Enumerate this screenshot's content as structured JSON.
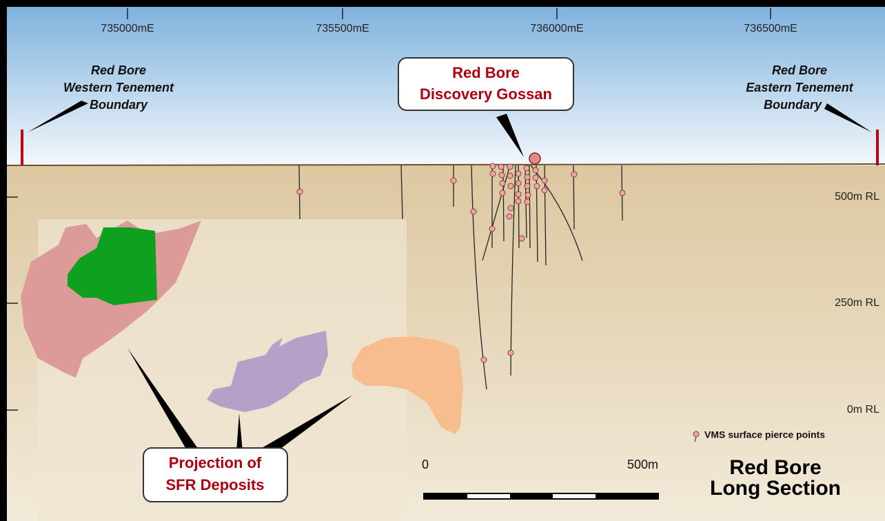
{
  "eastings": [
    "735000mE",
    "735500mE",
    "736000mE",
    "736500mE"
  ],
  "elevations": [
    "500m RL",
    "250m RL",
    "0m RL"
  ],
  "western_boundary": [
    "Red Bore",
    "Western Tenement",
    "Boundary"
  ],
  "eastern_boundary": [
    "Red Bore",
    "Eastern Tenement",
    "Boundary"
  ],
  "gossan_callout": [
    "Red Bore",
    "Discovery Gossan"
  ],
  "deposits_callout": [
    "Projection of",
    "SFR Deposits"
  ],
  "legend": "VMS surface pierce points",
  "scale_bar": {
    "start": "0",
    "end": "500m"
  },
  "title": [
    "Red Bore",
    "Long Section"
  ]
}
